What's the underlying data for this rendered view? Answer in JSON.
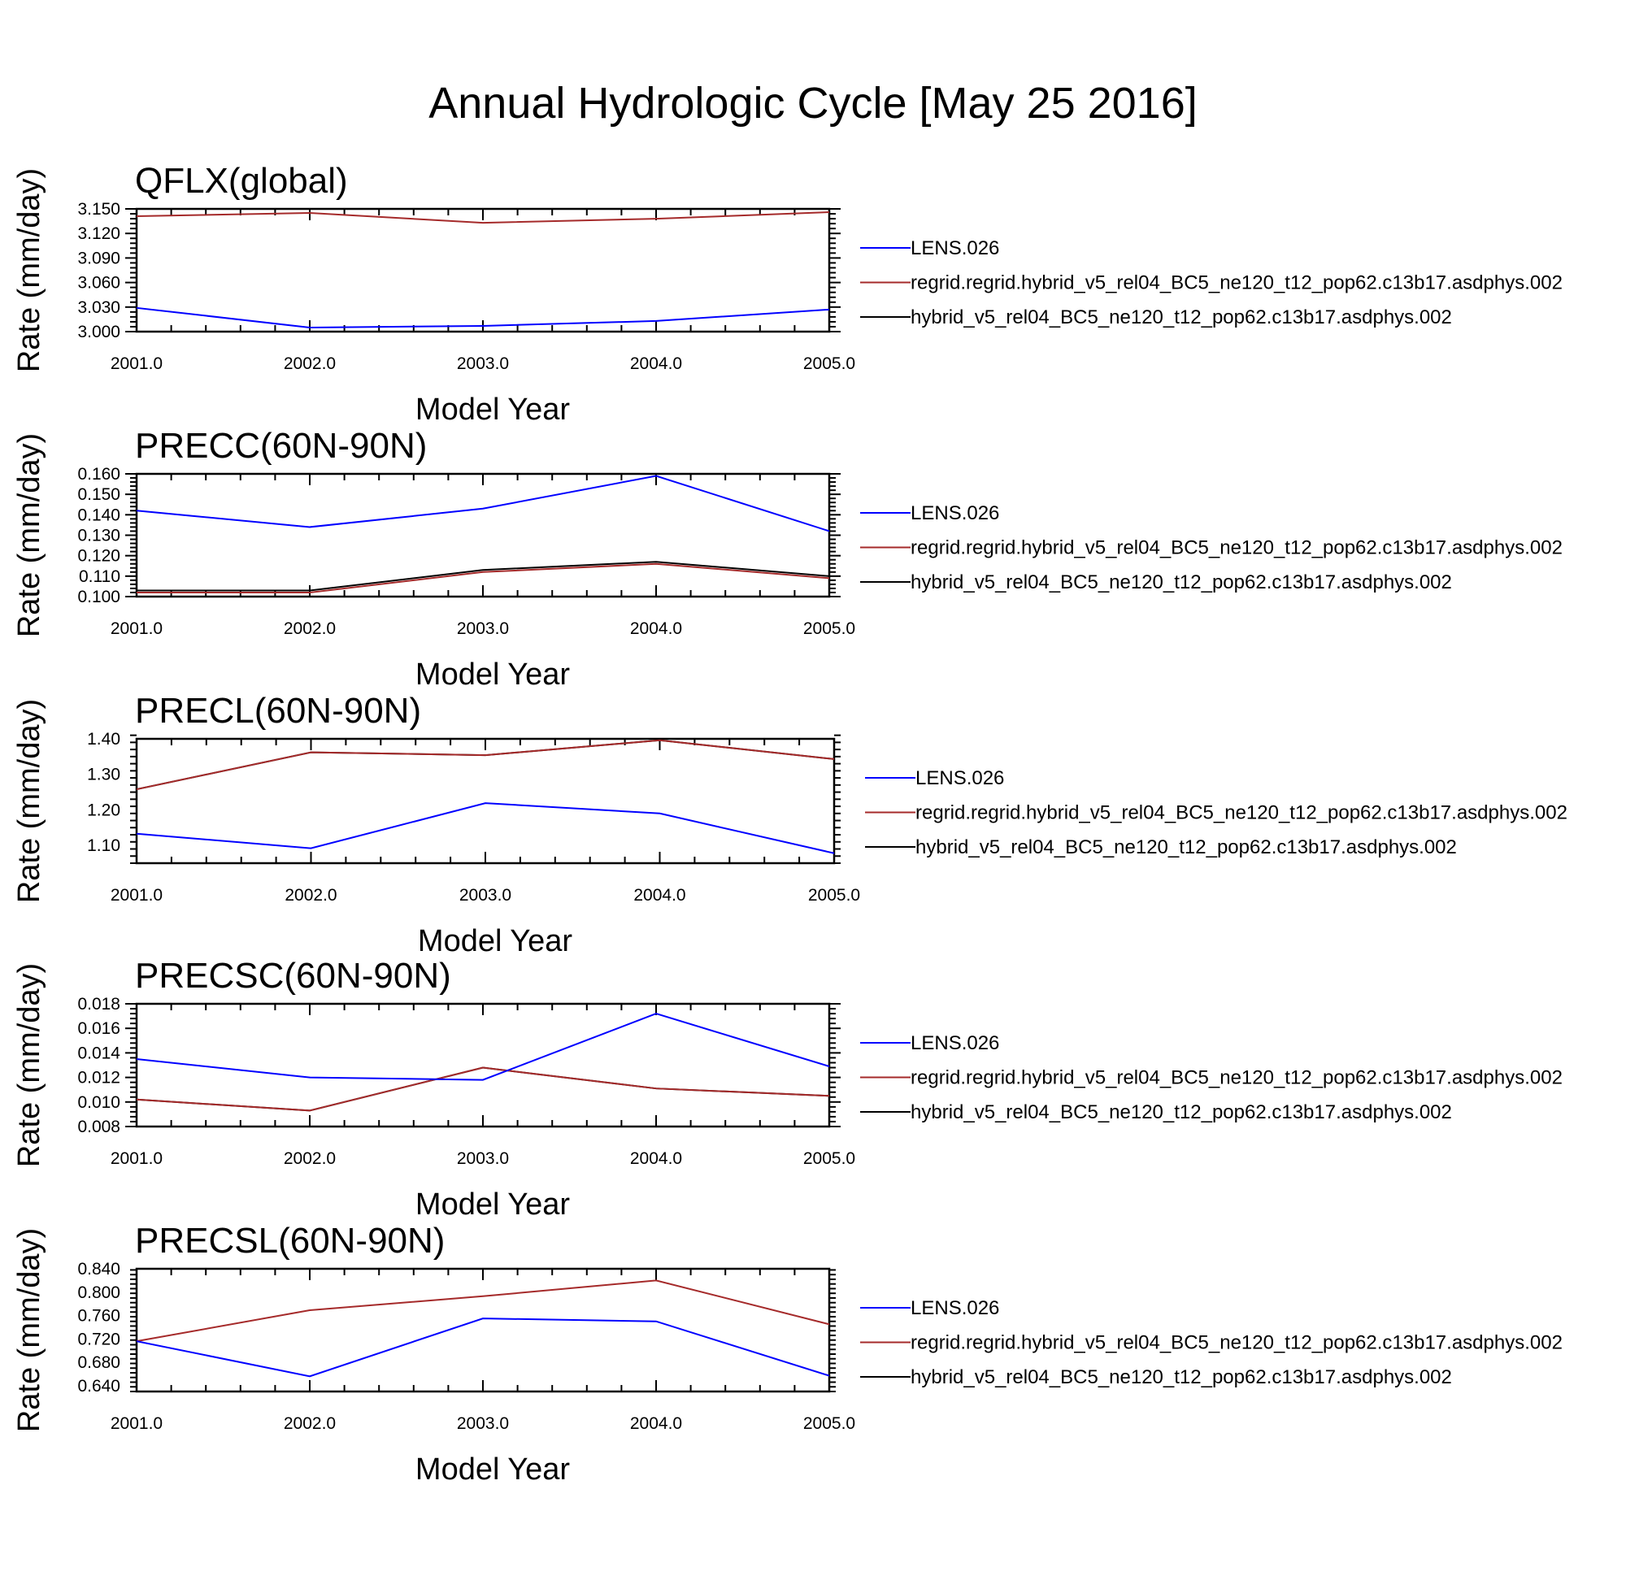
{
  "title": "Annual Hydrologic Cycle [May 25 2016]",
  "colors": {
    "LENS.026": "#0000ff",
    "regrid": "#a52a2a",
    "hybrid": "#000000"
  },
  "chart_data": [
    {
      "type": "line",
      "title": "QFLX(global)",
      "xlabel": "Model Year",
      "ylabel": "Rate (mm/day)",
      "x": [
        2001,
        2002,
        2003,
        2004,
        2005
      ],
      "xticklabels": [
        "2001.0",
        "2002.0",
        "2003.0",
        "2004.0",
        "2005.0"
      ],
      "ylim": [
        3.0,
        3.15
      ],
      "yticks": [
        3.0,
        3.03,
        3.06,
        3.09,
        3.12,
        3.15
      ],
      "yticklabels": [
        "3.000",
        "3.030",
        "3.060",
        "3.090",
        "3.120",
        "3.150"
      ],
      "legend": "right",
      "series": [
        {
          "name": "LENS.026",
          "color": "#0000ff",
          "values": [
            3.029,
            3.005,
            3.007,
            3.013,
            3.027
          ]
        },
        {
          "name": "regrid.regrid.hybrid_v5_rel04_BC5_ne120_t12_pop62.c13b17.asdphys.002",
          "color": "#a52a2a",
          "values": [
            3.141,
            3.145,
            3.133,
            3.138,
            3.146
          ]
        },
        {
          "name": "hybrid_v5_rel04_BC5_ne120_t12_pop62.c13b17.asdphys.002",
          "color": "#000000",
          "values": [
            null,
            null,
            null,
            null,
            null
          ]
        }
      ]
    },
    {
      "type": "line",
      "title": "PRECC(60N-90N)",
      "xlabel": "Model Year",
      "ylabel": "Rate (mm/day)",
      "x": [
        2001,
        2002,
        2003,
        2004,
        2005
      ],
      "xticklabels": [
        "2001.0",
        "2002.0",
        "2003.0",
        "2004.0",
        "2005.0"
      ],
      "ylim": [
        0.1,
        0.16
      ],
      "yticks": [
        0.1,
        0.11,
        0.12,
        0.13,
        0.14,
        0.15,
        0.16
      ],
      "yticklabels": [
        "0.100",
        "0.110",
        "0.120",
        "0.130",
        "0.140",
        "0.150",
        "0.160"
      ],
      "legend": "right",
      "series": [
        {
          "name": "LENS.026",
          "color": "#0000ff",
          "values": [
            0.142,
            0.134,
            0.143,
            0.159,
            0.132
          ]
        },
        {
          "name": "regrid.regrid.hybrid_v5_rel04_BC5_ne120_t12_pop62.c13b17.asdphys.002",
          "color": "#a52a2a",
          "values": [
            0.102,
            0.102,
            0.112,
            0.116,
            0.109
          ]
        },
        {
          "name": "hybrid_v5_rel04_BC5_ne120_t12_pop62.c13b17.asdphys.002",
          "color": "#000000",
          "values": [
            0.103,
            0.103,
            0.113,
            0.117,
            0.11
          ]
        }
      ]
    },
    {
      "type": "line",
      "title": "PRECL(60N-90N)",
      "xlabel": "Model Year",
      "ylabel": "Rate (mm/day)",
      "x": [
        2001,
        2002,
        2003,
        2004,
        2005
      ],
      "xticklabels": [
        "2001.0",
        "2002.0",
        "2003.0",
        "2004.0",
        "2005.0"
      ],
      "ylim": [
        1.05,
        1.4
      ],
      "yticks": [
        1.1,
        1.2,
        1.3,
        1.4
      ],
      "yticklabels": [
        "1.10",
        "1.20",
        "1.30",
        "1.40"
      ],
      "legend": "right",
      "series": [
        {
          "name": "LENS.026",
          "color": "#0000ff",
          "values": [
            1.133,
            1.092,
            1.219,
            1.19,
            1.078
          ]
        },
        {
          "name": "regrid.regrid.hybrid_v5_rel04_BC5_ne120_t12_pop62.c13b17.asdphys.002",
          "color": "#a52a2a",
          "values": [
            1.258,
            1.362,
            1.354,
            1.396,
            1.343
          ]
        },
        {
          "name": "hybrid_v5_rel04_BC5_ne120_t12_pop62.c13b17.asdphys.002",
          "color": "#000000",
          "values": [
            1.258,
            1.362,
            1.354,
            1.396,
            1.343
          ]
        }
      ]
    },
    {
      "type": "line",
      "title": "PRECSC(60N-90N)",
      "xlabel": "Model Year",
      "ylabel": "Rate (mm/day)",
      "x": [
        2001,
        2002,
        2003,
        2004,
        2005
      ],
      "xticklabels": [
        "2001.0",
        "2002.0",
        "2003.0",
        "2004.0",
        "2005.0"
      ],
      "ylim": [
        0.008,
        0.018
      ],
      "yticks": [
        0.008,
        0.01,
        0.012,
        0.014,
        0.016,
        0.018
      ],
      "yticklabels": [
        "0.008",
        "0.010",
        "0.012",
        "0.014",
        "0.016",
        "0.018"
      ],
      "legend": "right",
      "series": [
        {
          "name": "LENS.026",
          "color": "#0000ff",
          "values": [
            0.0135,
            0.012,
            0.0118,
            0.0172,
            0.0129
          ]
        },
        {
          "name": "regrid.regrid.hybrid_v5_rel04_BC5_ne120_t12_pop62.c13b17.asdphys.002",
          "color": "#a52a2a",
          "values": [
            0.0102,
            0.0093,
            0.0128,
            0.0111,
            0.0105
          ]
        },
        {
          "name": "hybrid_v5_rel04_BC5_ne120_t12_pop62.c13b17.asdphys.002",
          "color": "#000000",
          "values": [
            0.0102,
            0.0093,
            0.0128,
            0.0111,
            0.0105
          ]
        }
      ]
    },
    {
      "type": "line",
      "title": "PRECSL(60N-90N)",
      "xlabel": "Model Year",
      "ylabel": "Rate (mm/day)",
      "x": [
        2001,
        2002,
        2003,
        2004,
        2005
      ],
      "xticklabels": [
        "2001.0",
        "2002.0",
        "2003.0",
        "2004.0",
        "2005.0"
      ],
      "ylim": [
        0.63,
        0.84
      ],
      "yticks": [
        0.64,
        0.68,
        0.72,
        0.76,
        0.8,
        0.84
      ],
      "yticklabels": [
        "0.640",
        "0.680",
        "0.720",
        "0.760",
        "0.800",
        "0.840"
      ],
      "legend": "right",
      "series": [
        {
          "name": "LENS.026",
          "color": "#0000ff",
          "values": [
            0.716,
            0.656,
            0.755,
            0.75,
            0.657
          ]
        },
        {
          "name": "regrid.regrid.hybrid_v5_rel04_BC5_ne120_t12_pop62.c13b17.asdphys.002",
          "color": "#a52a2a",
          "values": [
            0.716,
            0.769,
            0.793,
            0.82,
            0.745
          ]
        },
        {
          "name": "hybrid_v5_rel04_BC5_ne120_t12_pop62.c13b17.asdphys.002",
          "color": "#000000",
          "values": [
            null,
            null,
            null,
            null,
            null
          ]
        }
      ]
    }
  ]
}
